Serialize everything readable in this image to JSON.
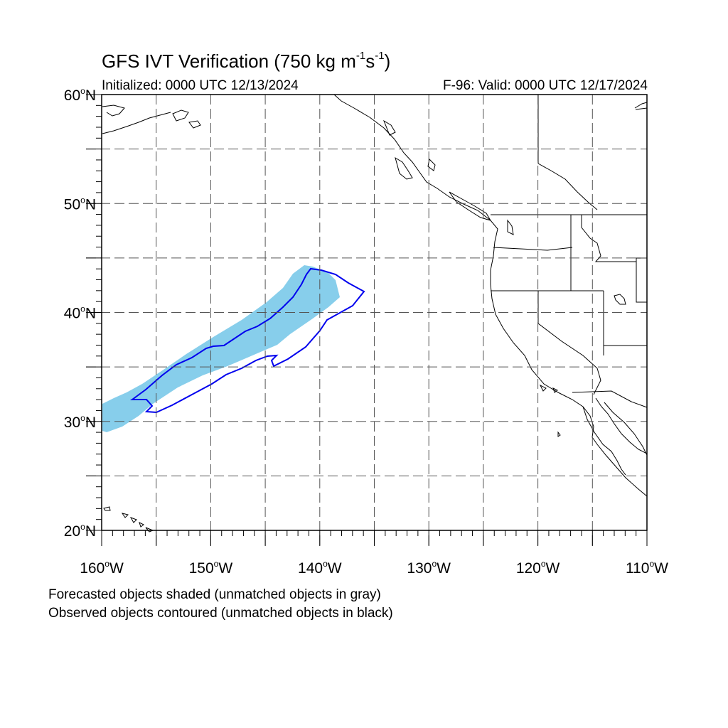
{
  "title_main": "GFS IVT Verification (750 kg m",
  "title_exp1": "-1",
  "title_mid": "s",
  "title_exp2": "-1",
  "title_end": ")",
  "initialized": "Initialized: 0000 UTC 12/13/2024",
  "valid": "F-96: Valid: 0000 UTC 12/17/2024",
  "caption_forecast": "Forecasted objects shaded (unmatched objects in gray)",
  "caption_observed": "Observed objects contoured (unmatched objects in black)",
  "colors": {
    "forecast_fill": "#87ceeb",
    "observed_contour": "#0000ee",
    "coastline": "#000000",
    "grid": "#555555"
  },
  "map": {
    "extent": {
      "lon_min": -160,
      "lon_max": -110,
      "lat_min": 20,
      "lat_max": 60
    },
    "lat_labels": [
      {
        "lat": 60,
        "num": "60",
        "unit": "N"
      },
      {
        "lat": 50,
        "num": "50",
        "unit": "N"
      },
      {
        "lat": 40,
        "num": "40",
        "unit": "N"
      },
      {
        "lat": 30,
        "num": "30",
        "unit": "N"
      },
      {
        "lat": 20,
        "num": "20",
        "unit": "N"
      }
    ],
    "lon_labels": [
      {
        "lon": -160,
        "num": "160",
        "unit": "W"
      },
      {
        "lon": -150,
        "num": "150",
        "unit": "W"
      },
      {
        "lon": -140,
        "num": "140",
        "unit": "W"
      },
      {
        "lon": -130,
        "num": "130",
        "unit": "W"
      },
      {
        "lon": -120,
        "num": "120",
        "unit": "W"
      },
      {
        "lon": -110,
        "num": "110",
        "unit": "W"
      }
    ],
    "grid_lats": [
      25,
      30,
      35,
      40,
      45,
      50,
      55
    ],
    "grid_lons": [
      -155,
      -150,
      -145,
      -140,
      -135,
      -130,
      -125,
      -120,
      -115
    ]
  }
}
